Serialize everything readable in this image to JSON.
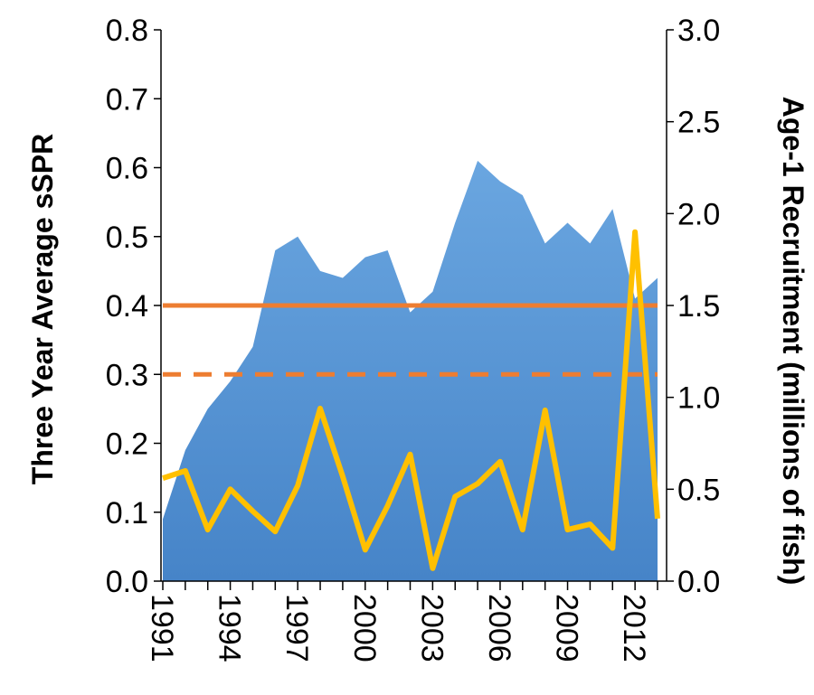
{
  "chart_data": {
    "type": "area",
    "title": "",
    "xlabel": "",
    "ylabel": "Three Year Average sSPR",
    "y2label": "Age-1 Recruitment (millions of fish)",
    "x": [
      1991,
      1992,
      1993,
      1994,
      1995,
      1996,
      1997,
      1998,
      1999,
      2000,
      2001,
      2002,
      2003,
      2004,
      2005,
      2006,
      2007,
      2008,
      2009,
      2010,
      2011,
      2012,
      2013
    ],
    "x_tick_labels": [
      "1991",
      "1994",
      "1997",
      "2000",
      "2003",
      "2006",
      "2009",
      "2012"
    ],
    "x_tick_values": [
      1991,
      1994,
      1997,
      2000,
      2003,
      2006,
      2009,
      2012
    ],
    "ylim": [
      0,
      0.8
    ],
    "y_ticks": [
      "0.0",
      "0.1",
      "0.2",
      "0.3",
      "0.4",
      "0.5",
      "0.6",
      "0.7",
      "0.8"
    ],
    "y2lim": [
      0,
      3.0
    ],
    "y2_ticks": [
      "0.0",
      "0.5",
      "1.0",
      "1.5",
      "2.0",
      "2.5",
      "3.0"
    ],
    "series": [
      {
        "axis": "left",
        "kind": "area",
        "color": "#4a8fd6",
        "values": [
          0.09,
          0.19,
          0.25,
          0.29,
          0.34,
          0.48,
          0.5,
          0.45,
          0.44,
          0.47,
          0.48,
          0.39,
          0.42,
          0.52,
          0.61,
          0.58,
          0.56,
          0.49,
          0.52,
          0.49,
          0.54,
          0.41,
          0.44
        ]
      },
      {
        "axis": "right",
        "kind": "line",
        "color": "#ffc000",
        "values": [
          0.56,
          0.6,
          0.28,
          0.5,
          0.38,
          0.27,
          0.52,
          0.94,
          0.57,
          0.17,
          0.41,
          0.69,
          0.07,
          0.46,
          0.53,
          0.65,
          0.28,
          0.93,
          0.28,
          0.31,
          0.18,
          1.9,
          0.34
        ]
      }
    ],
    "reference_lines": [
      {
        "axis": "left",
        "value": 0.4,
        "style": "solid",
        "color": "#ed7d31"
      },
      {
        "axis": "left",
        "value": 0.3,
        "style": "dashed",
        "color": "#ed7d31"
      }
    ],
    "grid": false,
    "legend": "none"
  }
}
